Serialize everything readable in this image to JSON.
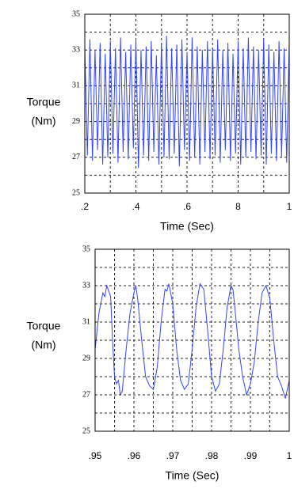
{
  "chart_data": [
    {
      "type": "line",
      "ylabel": [
        "Torque",
        "(Nm)"
      ],
      "xlabel": "Time (Sec)",
      "xlim": [
        0.2,
        1
      ],
      "ylim": [
        25,
        35
      ],
      "xticks": [
        {
          "value": 0.2,
          "label": ".2"
        },
        {
          "value": 0.4,
          "label": ".4"
        },
        {
          "value": 0.6,
          "label": ".6"
        },
        {
          "value": 0.8,
          "label": "8"
        },
        1
      ],
      "yticks": [
        25,
        27,
        29,
        31,
        33,
        35
      ],
      "xminor": [
        0.3,
        0.5,
        0.7,
        0.9
      ],
      "yminor": [
        26,
        28,
        30,
        32,
        34
      ],
      "grid": true,
      "series": [
        {
          "color": "#3344ff",
          "x": [
            0.2,
            0.21,
            0.22,
            0.23,
            0.24,
            0.25,
            0.26,
            0.27,
            0.28,
            0.29,
            0.3,
            0.31,
            0.32,
            0.33,
            0.34,
            0.35,
            0.36,
            0.37,
            0.38,
            0.39,
            0.4,
            0.41,
            0.42,
            0.43,
            0.44,
            0.45,
            0.46,
            0.47,
            0.48,
            0.49,
            0.5,
            0.51,
            0.52,
            0.53,
            0.54,
            0.55,
            0.56,
            0.57,
            0.58,
            0.59,
            0.6,
            0.61,
            0.62,
            0.63,
            0.64,
            0.65,
            0.66,
            0.67,
            0.68,
            0.69,
            0.7,
            0.71,
            0.72,
            0.73,
            0.74,
            0.75,
            0.76,
            0.77,
            0.78,
            0.79,
            0.8,
            0.81,
            0.82,
            0.83,
            0.84,
            0.85,
            0.86,
            0.87,
            0.88,
            0.89,
            0.9,
            0.91,
            0.92,
            0.93,
            0.94,
            0.95,
            0.96,
            0.97,
            0.98,
            0.99,
            1.0
          ],
          "values": [
            33.2,
            27.1,
            33.6,
            26.8,
            33.0,
            27.4,
            33.4,
            26.6,
            32.8,
            27.0,
            33.5,
            27.2,
            33.1,
            26.7,
            33.7,
            27.3,
            32.9,
            26.9,
            33.3,
            27.5,
            33.6,
            26.4,
            33.0,
            27.1,
            33.2,
            26.8,
            33.5,
            27.3,
            32.7,
            26.6,
            33.4,
            27.0,
            33.8,
            26.9,
            33.1,
            27.2,
            33.3,
            26.5,
            33.6,
            27.4,
            32.9,
            26.8,
            33.7,
            27.0,
            33.2,
            26.6,
            33.0,
            27.3,
            33.5,
            26.9,
            33.1,
            27.1,
            33.6,
            26.7,
            33.0,
            27.4,
            33.4,
            26.8,
            32.8,
            27.2,
            33.5,
            26.6,
            33.1,
            27.0,
            33.7,
            27.3,
            33.2,
            26.9,
            33.0,
            27.1,
            33.6,
            26.6,
            33.3,
            27.2,
            32.9,
            26.8,
            33.5,
            27.0,
            33.1,
            26.7,
            33.4
          ]
        }
      ]
    },
    {
      "type": "line",
      "ylabel": [
        "Torque",
        "(Nm)"
      ],
      "xlabel": "Time (Sec)",
      "xlim": [
        0.95,
        1
      ],
      "ylim": [
        25,
        35
      ],
      "xticks": [
        {
          "value": 0.95,
          "label": ".95"
        },
        {
          "value": 0.96,
          "label": ".96"
        },
        {
          "value": 0.97,
          "label": ".97"
        },
        {
          "value": 0.98,
          "label": ".98"
        },
        {
          "value": 0.99,
          "label": ".99"
        },
        1
      ],
      "yticks": [
        25,
        27,
        29,
        31,
        33,
        35
      ],
      "xminor": [
        0.955,
        0.965,
        0.975,
        0.985,
        0.995
      ],
      "yminor": [
        26,
        28,
        30,
        32,
        34
      ],
      "grid": true,
      "series": [
        {
          "color": "#3344ff",
          "x": [
            0.95,
            0.951,
            0.952,
            0.9525,
            0.953,
            0.954,
            0.9545,
            0.955,
            0.9555,
            0.956,
            0.9565,
            0.957,
            0.958,
            0.959,
            0.96,
            0.9605,
            0.961,
            0.962,
            0.963,
            0.964,
            0.965,
            0.966,
            0.967,
            0.968,
            0.9685,
            0.969,
            0.97,
            0.971,
            0.972,
            0.973,
            0.974,
            0.975,
            0.976,
            0.977,
            0.978,
            0.979,
            0.98,
            0.981,
            0.982,
            0.983,
            0.984,
            0.985,
            0.9855,
            0.986,
            0.987,
            0.988,
            0.989,
            0.99,
            0.991,
            0.992,
            0.993,
            0.994,
            0.995,
            0.996,
            0.997,
            0.998,
            0.999,
            1.0
          ],
          "values": [
            29.5,
            31.5,
            32.6,
            32.4,
            33.0,
            32.4,
            30.0,
            28.0,
            27.6,
            27.8,
            27.0,
            27.2,
            29.5,
            31.5,
            32.6,
            33.0,
            32.2,
            30.0,
            28.0,
            27.5,
            27.3,
            28.5,
            31.0,
            32.8,
            32.7,
            33.1,
            32.0,
            29.5,
            27.8,
            27.3,
            27.6,
            29.5,
            31.8,
            33.1,
            32.8,
            30.5,
            28.0,
            27.2,
            27.6,
            29.5,
            31.8,
            33.0,
            32.8,
            31.8,
            29.5,
            28.0,
            27.0,
            27.6,
            28.8,
            31.0,
            32.6,
            33.0,
            32.3,
            30.0,
            28.0,
            27.5,
            26.8,
            27.8
          ]
        }
      ]
    }
  ]
}
